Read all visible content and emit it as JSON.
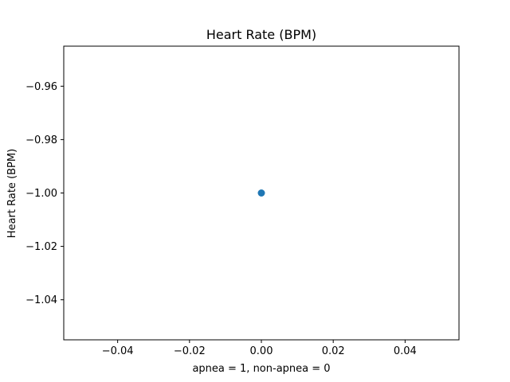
{
  "chart_data": {
    "type": "scatter",
    "title": "Heart Rate (BPM)",
    "xlabel": "apnea = 1, non-apnea = 0",
    "ylabel": "Heart Rate (BPM)",
    "xlim": [
      -0.055,
      0.055
    ],
    "ylim": [
      -1.055,
      -0.945
    ],
    "x_ticks": [
      -0.04,
      -0.02,
      0.0,
      0.02,
      0.04
    ],
    "x_tick_labels": [
      "−0.04",
      "−0.02",
      "0.00",
      "0.02",
      "0.04"
    ],
    "y_ticks": [
      -0.96,
      -0.98,
      -1.0,
      -1.02,
      -1.04
    ],
    "y_tick_labels": [
      "−0.96",
      "−0.98",
      "−1.00",
      "−1.02",
      "−1.04"
    ],
    "grid": false,
    "series": [
      {
        "color": "#1f77b4",
        "points": [
          {
            "x": 0.0,
            "y": -1.0
          }
        ]
      }
    ]
  }
}
